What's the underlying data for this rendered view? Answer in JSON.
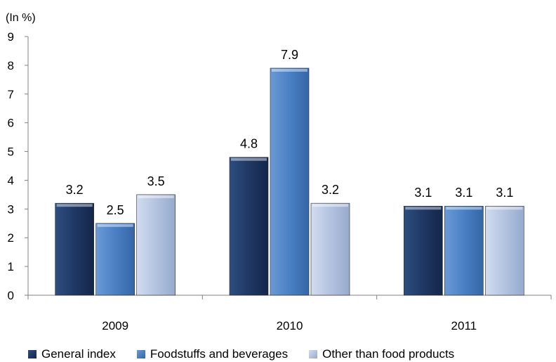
{
  "chart_data": {
    "type": "bar",
    "unit_label": "(In %)",
    "categories": [
      "2009",
      "2010",
      "2011"
    ],
    "series": [
      {
        "name": "General index",
        "values": [
          3.2,
          4.8,
          3.1
        ],
        "color": "#1f3864"
      },
      {
        "name": "Foodstuffs and beverages",
        "values": [
          2.5,
          7.9,
          3.1
        ],
        "color": "#4a80c4"
      },
      {
        "name": "Other than food products",
        "values": [
          3.5,
          3.2,
          3.1
        ],
        "color": "#b3c3e0"
      }
    ],
    "data_labels": [
      [
        "3.2",
        "4.8",
        "3.1"
      ],
      [
        "2.5",
        "7.9",
        "3.1"
      ],
      [
        "3.5",
        "3.2",
        "3.1"
      ]
    ],
    "ylim": [
      0,
      9
    ],
    "yticks": [
      "0",
      "1",
      "2",
      "3",
      "4",
      "5",
      "6",
      "7",
      "8",
      "9"
    ],
    "grid": false,
    "legend_position": "bottom"
  }
}
